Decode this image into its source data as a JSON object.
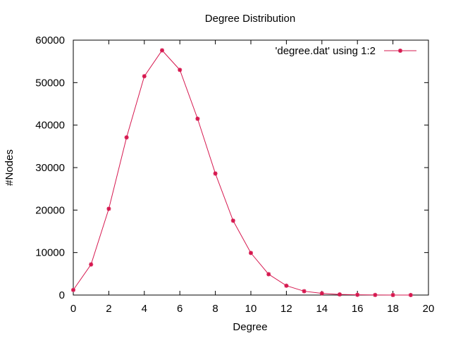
{
  "chart_data": {
    "type": "line",
    "title": "Degree Distribution",
    "xlabel": "Degree",
    "ylabel": "#Nodes",
    "xlim": [
      0,
      20
    ],
    "ylim": [
      0,
      60000
    ],
    "xticks": [
      "0",
      "2",
      "4",
      "6",
      "8",
      "10",
      "12",
      "14",
      "16",
      "18",
      "20"
    ],
    "yticks": [
      "0",
      "10000",
      "20000",
      "30000",
      "40000",
      "50000",
      "60000"
    ],
    "grid": false,
    "legend_position": "top-right",
    "series_color": "#d6184f",
    "series": [
      {
        "name": "'degree.dat' using 1:2",
        "x": [
          0,
          1,
          2,
          3,
          4,
          5,
          6,
          7,
          8,
          9,
          10,
          11,
          12,
          13,
          14,
          15,
          16,
          17,
          18,
          19
        ],
        "values": [
          1200,
          7200,
          20300,
          37100,
          51500,
          57600,
          53000,
          41500,
          28600,
          17500,
          9900,
          4900,
          2200,
          900,
          400,
          150,
          60,
          25,
          10,
          5
        ]
      }
    ]
  }
}
